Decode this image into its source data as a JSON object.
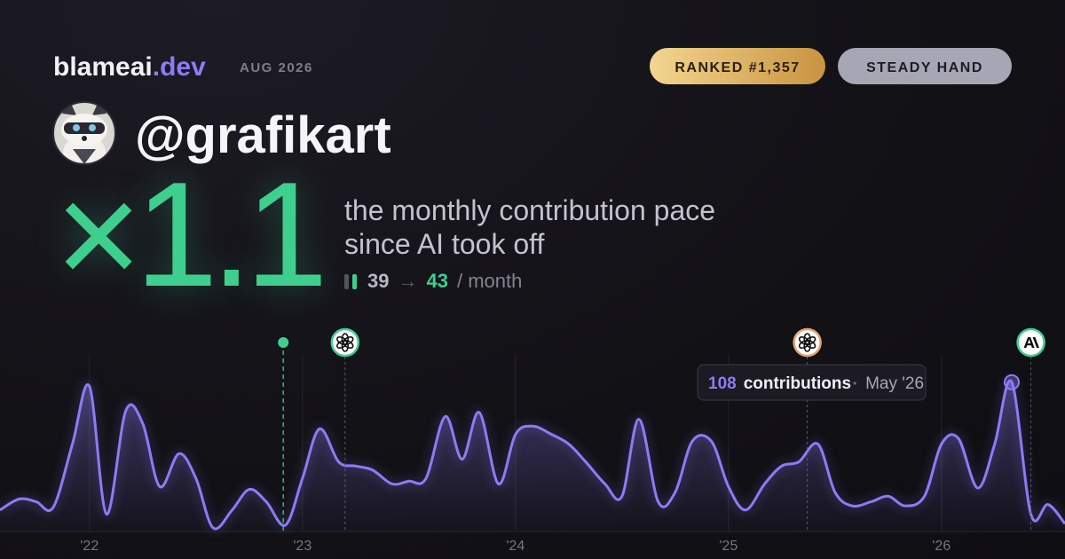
{
  "header": {
    "brand": "blameai",
    "brand_tld": ".dev",
    "period": "AUG 2026",
    "badges": [
      "RANKED #1,357",
      "STEADY HAND"
    ],
    "username": "@grafikart"
  },
  "stats": {
    "multiplier": "×1.1",
    "description": "the monthly contribution pace since AI took off",
    "before": 39,
    "arrow": "→",
    "after": 43,
    "unit": "/ month"
  },
  "chart_data": {
    "type": "line",
    "color": "#8b7cf6",
    "grid": true,
    "x": [
      2021.58,
      2021.67,
      2021.75,
      2021.83,
      2021.92,
      2022.0,
      2022.08,
      2022.17,
      2022.25,
      2022.33,
      2022.42,
      2022.5,
      2022.58,
      2022.67,
      2022.75,
      2022.83,
      2022.92,
      2023.0,
      2023.08,
      2023.17,
      2023.25,
      2023.33,
      2023.42,
      2023.5,
      2023.58,
      2023.67,
      2023.75,
      2023.83,
      2023.92,
      2024.0,
      2024.08,
      2024.17,
      2024.25,
      2024.33,
      2024.42,
      2024.5,
      2024.58,
      2024.67,
      2024.75,
      2024.83,
      2024.92,
      2025.0,
      2025.08,
      2025.17,
      2025.25,
      2025.33,
      2025.42,
      2025.5,
      2025.58,
      2025.67,
      2025.75,
      2025.83,
      2025.92,
      2026.0,
      2026.08,
      2026.17,
      2026.25,
      2026.33,
      2026.42,
      2026.5,
      2026.58
    ],
    "values": [
      15,
      23,
      21,
      17,
      63,
      105,
      12,
      87,
      78,
      32,
      56,
      38,
      2,
      15,
      30,
      21,
      4,
      38,
      74,
      50,
      47,
      44,
      34,
      36,
      38,
      83,
      52,
      86,
      34,
      70,
      76,
      70,
      63,
      50,
      34,
      25,
      81,
      21,
      28,
      65,
      65,
      32,
      15,
      34,
      47,
      50,
      63,
      28,
      18,
      21,
      25,
      18,
      25,
      63,
      67,
      31,
      63,
      108,
      12,
      19,
      5
    ],
    "xlim": [
      2021.58,
      2026.58
    ],
    "ylim": [
      0,
      144
    ],
    "xticks": [
      {
        "value": 2022,
        "label": "'22"
      },
      {
        "value": 2023,
        "label": "'23"
      },
      {
        "value": 2024,
        "label": "'24"
      },
      {
        "value": 2025,
        "label": "'25"
      },
      {
        "value": 2026,
        "label": "'26"
      }
    ],
    "events": [
      {
        "x": 2022.91,
        "icon": "dot",
        "color": "#3ecf8e"
      },
      {
        "x": 2023.2,
        "icon": "openai",
        "color": "#3ecf8e"
      },
      {
        "x": 2025.37,
        "icon": "openai",
        "color": "#e8a26a"
      },
      {
        "x": 2026.42,
        "icon": "anthropic",
        "color": "#3ecf8e"
      }
    ],
    "tooltip": {
      "x": 2026.33,
      "value": 108,
      "label": "contributions",
      "date": "May '26"
    }
  }
}
